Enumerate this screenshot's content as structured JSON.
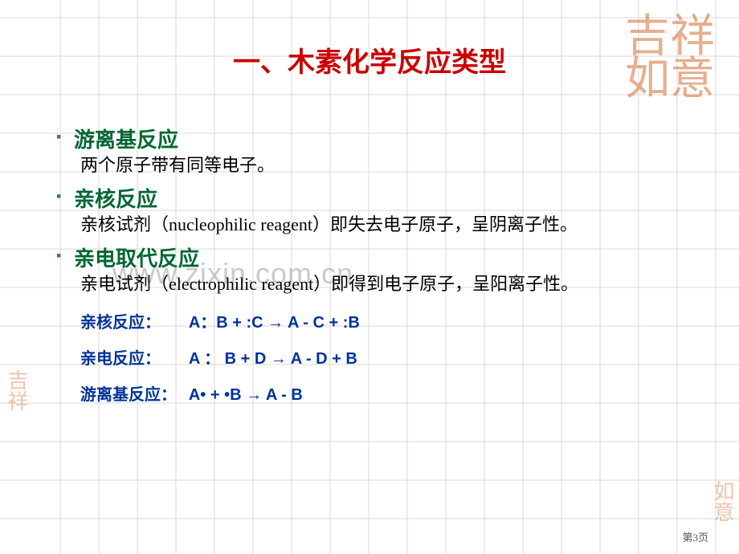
{
  "palette": {
    "title_color": "#cc0000",
    "heading_color": "#006633",
    "bullet_color": "#3a6ea5",
    "text_color": "#000000",
    "eq_color": "#003399",
    "grid_color": "#d8d8d8",
    "watermark_color": "rgba(150,150,150,0.5)",
    "seal_color": "rgba(210,110,50,0.55)"
  },
  "grid": {
    "cell_size": 48,
    "stroke_width": 1
  },
  "title": "一、木素化学反应类型",
  "sections": [
    {
      "heading": "游离基反应",
      "body": "两个原子带有同等电子。"
    },
    {
      "heading": "亲核反应",
      "body": "亲核试剂（nucleophilic reagent）即失去电子原子，呈阴离子性。"
    },
    {
      "heading": "亲电取代反应",
      "body": "亲电试剂（electrophilic reagent）即得到电子原子，呈阳离子性。"
    }
  ],
  "equations": [
    {
      "label": "亲核反应：",
      "expr": "A：B + :C  →  A - C + :B"
    },
    {
      "label": "亲电反应：",
      "expr": "A ： B + D  →  A - D + B"
    },
    {
      "label": "游离基反应：",
      "expr": "A• + •B →  A - B"
    }
  ],
  "watermark": "www.zixin.com.cn",
  "page_number": "第3页",
  "seals": {
    "top": "吉祥\n如意",
    "left": "吉祥",
    "bottom": "如意"
  }
}
